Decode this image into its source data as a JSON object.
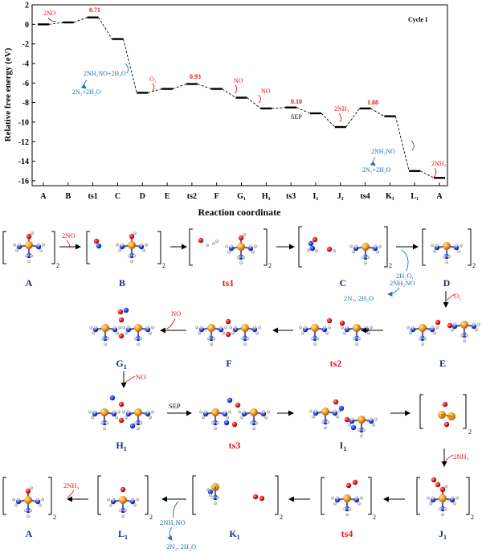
{
  "energy_profile": {
    "cycle_label": "Cycle I",
    "y_axis_label": "Relative free energy (eV)",
    "x_axis_label": "Reaction coordinate",
    "y_ticks": [
      "2",
      "0",
      "-2",
      "-4",
      "-6",
      "-8",
      "-10",
      "-12",
      "-14",
      "-16"
    ],
    "x_ticks": [
      "A",
      "B",
      "ts1",
      "C",
      "D",
      "E",
      "ts2",
      "F",
      "G₁",
      "H₁",
      "ts3",
      "I₁",
      "J₁",
      "ts4",
      "K₁",
      "L₁",
      "A"
    ],
    "barrier_labels": [
      "0.71",
      "0.93",
      "0.10",
      "1.88"
    ],
    "reagent_labels": [
      "2NO",
      "O₂",
      "NO",
      "NO",
      "2NH₃",
      "2NH₃"
    ],
    "sep_label": "SEP",
    "blue_labels": [
      "2NH₂NO+2H₂O",
      "2N₂+2H₂O",
      "2NH₂NO",
      "2N₂+2H₂O"
    ]
  },
  "chart_data": {
    "type": "line",
    "title": "",
    "xlabel": "Reaction coordinate",
    "ylabel": "Relative free energy (eV)",
    "ylim": [
      -16.5,
      2
    ],
    "categories": [
      "A",
      "B",
      "ts1",
      "C",
      "D",
      "E",
      "ts2",
      "F",
      "G₁",
      "H₁",
      "ts3",
      "I₁",
      "J₁",
      "ts4",
      "K₁",
      "L₁",
      "A"
    ],
    "values": [
      0,
      0.2,
      0.71,
      -1.5,
      -7.0,
      -6.6,
      -6.1,
      -6.6,
      -7.5,
      -8.6,
      -8.5,
      -9.1,
      -10.5,
      -8.6,
      -9.4,
      -15.0,
      -15.7
    ]
  },
  "schemes": {
    "labels": [
      "A",
      "B",
      "ts1",
      "C",
      "D",
      "E",
      "ts2",
      "F",
      "G",
      "H",
      "ts3",
      "I",
      "J",
      "ts4",
      "K",
      "L",
      "A"
    ],
    "label_subscripts": [
      "1",
      "1",
      "1",
      "1",
      "1",
      "1"
    ],
    "subscript_two": "2",
    "reagents": {
      "no_2": "2NO",
      "o2": "O₂",
      "no_f": "NO",
      "no_g": "NO",
      "sep": "SEP",
      "nh3_1": "2NH₃",
      "nh3_2": "2NH₃",
      "cd_in": "2H₂O,",
      "cd_in2": "2NH₂NO",
      "cd_out": "2N₂, 2H₂O",
      "kl_in": "2NH₂NO",
      "kl_out": "2N₂, 2H₂O"
    }
  },
  "colors": {
    "fe_atom": "#e08c10",
    "nitrogen": "#1a3fe0",
    "oxygen": "#e01818",
    "hydrogen": "#f4f4f4",
    "red_text": "#e01818",
    "blue_text": "#1e6fb3",
    "dark_blue_label": "#1a2a8c"
  }
}
